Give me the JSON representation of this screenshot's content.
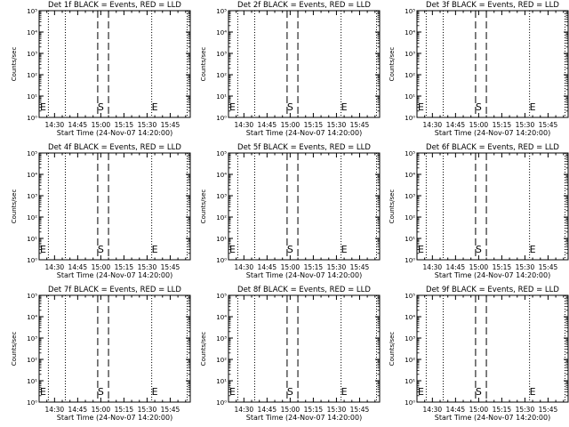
{
  "chart_data": [
    {
      "type": "line",
      "title": "Det 1f BLACK = Events, RED = LLD",
      "xlabel": "Start Time (24-Nov-07 14:20:00)",
      "ylabel": "Counts/sec",
      "x_ticks": [
        "14:30",
        "14:45",
        "15:00",
        "15:15",
        "15:30",
        "15:45"
      ],
      "y_ticks": [
        "10⁰",
        "10¹",
        "10²",
        "10³",
        "10⁴",
        "10⁵"
      ],
      "xlim": [
        "14:20",
        "15:58"
      ],
      "ylim": [
        1,
        100000
      ],
      "yscale": "log",
      "markers": [
        {
          "label": "E",
          "time": "14:20"
        },
        {
          "label": "S",
          "time": "15:00"
        },
        {
          "label": "E",
          "time": "15:35"
        }
      ],
      "dotted_lines": [
        "14:26",
        "14:37",
        "15:33",
        "15:56"
      ],
      "dashed_lines": [
        "14:58",
        "15:05"
      ],
      "series": []
    },
    {
      "type": "line",
      "title": "Det 2f BLACK = Events, RED = LLD",
      "xlabel": "Start Time (24-Nov-07 14:20:00)",
      "ylabel": "Counts/sec",
      "x_ticks": [
        "14:30",
        "14:45",
        "15:00",
        "15:15",
        "15:30",
        "15:45"
      ],
      "y_ticks": [
        "10⁰",
        "10¹",
        "10²",
        "10³",
        "10⁴",
        "10⁵"
      ],
      "xlim": [
        "14:20",
        "15:58"
      ],
      "ylim": [
        1,
        100000
      ],
      "yscale": "log",
      "markers": [
        {
          "label": "E",
          "time": "14:20"
        },
        {
          "label": "S",
          "time": "15:00"
        },
        {
          "label": "E",
          "time": "15:35"
        }
      ],
      "dotted_lines": [
        "14:26",
        "14:37",
        "15:33",
        "15:56"
      ],
      "dashed_lines": [
        "14:58",
        "15:05"
      ],
      "series": []
    },
    {
      "type": "line",
      "title": "Det 3f BLACK = Events, RED = LLD",
      "xlabel": "Start Time (24-Nov-07 14:20:00)",
      "ylabel": "Counts/sec",
      "x_ticks": [
        "14:30",
        "14:45",
        "15:00",
        "15:15",
        "15:30",
        "15:45"
      ],
      "y_ticks": [
        "10⁰",
        "10¹",
        "10²",
        "10³",
        "10⁴",
        "10⁵"
      ],
      "xlim": [
        "14:20",
        "15:58"
      ],
      "ylim": [
        1,
        100000
      ],
      "yscale": "log",
      "markers": [
        {
          "label": "E",
          "time": "14:20"
        },
        {
          "label": "S",
          "time": "15:00"
        },
        {
          "label": "E",
          "time": "15:35"
        }
      ],
      "dotted_lines": [
        "14:26",
        "14:37",
        "15:33",
        "15:56"
      ],
      "dashed_lines": [
        "14:58",
        "15:05"
      ],
      "series": []
    },
    {
      "type": "line",
      "title": "Det 4f BLACK = Events, RED = LLD",
      "xlabel": "Start Time (24-Nov-07 14:20:00)",
      "ylabel": "Counts/sec",
      "x_ticks": [
        "14:30",
        "14:45",
        "15:00",
        "15:15",
        "15:30",
        "15:45"
      ],
      "y_ticks": [
        "10⁰",
        "10¹",
        "10²",
        "10³",
        "10⁴",
        "10⁵"
      ],
      "xlim": [
        "14:20",
        "15:58"
      ],
      "ylim": [
        1,
        100000
      ],
      "yscale": "log",
      "markers": [
        {
          "label": "E",
          "time": "14:20"
        },
        {
          "label": "S",
          "time": "15:00"
        },
        {
          "label": "E",
          "time": "15:35"
        }
      ],
      "dotted_lines": [
        "14:26",
        "14:37",
        "15:33",
        "15:56"
      ],
      "dashed_lines": [
        "14:58",
        "15:05"
      ],
      "series": []
    },
    {
      "type": "line",
      "title": "Det 5f BLACK = Events, RED = LLD",
      "xlabel": "Start Time (24-Nov-07 14:20:00)",
      "ylabel": "Counts/sec",
      "x_ticks": [
        "14:30",
        "14:45",
        "15:00",
        "15:15",
        "15:30",
        "15:45"
      ],
      "y_ticks": [
        "10⁰",
        "10¹",
        "10²",
        "10³",
        "10⁴",
        "10⁵"
      ],
      "xlim": [
        "14:20",
        "15:58"
      ],
      "ylim": [
        1,
        100000
      ],
      "yscale": "log",
      "markers": [
        {
          "label": "E",
          "time": "14:20"
        },
        {
          "label": "S",
          "time": "15:00"
        },
        {
          "label": "E",
          "time": "15:35"
        }
      ],
      "dotted_lines": [
        "14:26",
        "14:37",
        "15:33",
        "15:56"
      ],
      "dashed_lines": [
        "14:58",
        "15:05"
      ],
      "series": []
    },
    {
      "type": "line",
      "title": "Det 6f BLACK = Events, RED = LLD",
      "xlabel": "Start Time (24-Nov-07 14:20:00)",
      "ylabel": "Counts/sec",
      "x_ticks": [
        "14:30",
        "14:45",
        "15:00",
        "15:15",
        "15:30",
        "15:45"
      ],
      "y_ticks": [
        "10⁰",
        "10¹",
        "10²",
        "10³",
        "10⁴",
        "10⁵"
      ],
      "xlim": [
        "14:20",
        "15:58"
      ],
      "ylim": [
        1,
        100000
      ],
      "yscale": "log",
      "markers": [
        {
          "label": "E",
          "time": "14:20"
        },
        {
          "label": "S",
          "time": "15:00"
        },
        {
          "label": "E",
          "time": "15:35"
        }
      ],
      "dotted_lines": [
        "14:26",
        "14:37",
        "15:33",
        "15:56"
      ],
      "dashed_lines": [
        "14:58",
        "15:05"
      ],
      "series": []
    },
    {
      "type": "line",
      "title": "Det 7f BLACK = Events, RED = LLD",
      "xlabel": "Start Time (24-Nov-07 14:20:00)",
      "ylabel": "Counts/sec",
      "x_ticks": [
        "14:30",
        "14:45",
        "15:00",
        "15:15",
        "15:30",
        "15:45"
      ],
      "y_ticks": [
        "10⁰",
        "10¹",
        "10²",
        "10³",
        "10⁴",
        "10⁵"
      ],
      "xlim": [
        "14:20",
        "15:58"
      ],
      "ylim": [
        1,
        100000
      ],
      "yscale": "log",
      "markers": [
        {
          "label": "E",
          "time": "14:20"
        },
        {
          "label": "S",
          "time": "15:00"
        },
        {
          "label": "E",
          "time": "15:35"
        }
      ],
      "dotted_lines": [
        "14:26",
        "14:37",
        "15:33",
        "15:56"
      ],
      "dashed_lines": [
        "14:58",
        "15:05"
      ],
      "series": []
    },
    {
      "type": "line",
      "title": "Det 8f BLACK = Events, RED = LLD",
      "xlabel": "Start Time (24-Nov-07 14:20:00)",
      "ylabel": "Counts/sec",
      "x_ticks": [
        "14:30",
        "14:45",
        "15:00",
        "15:15",
        "15:30",
        "15:45"
      ],
      "y_ticks": [
        "10⁰",
        "10¹",
        "10²",
        "10³",
        "10⁴",
        "10⁵"
      ],
      "xlim": [
        "14:20",
        "15:58"
      ],
      "ylim": [
        1,
        100000
      ],
      "yscale": "log",
      "markers": [
        {
          "label": "E",
          "time": "14:20"
        },
        {
          "label": "S",
          "time": "15:00"
        },
        {
          "label": "E",
          "time": "15:35"
        }
      ],
      "dotted_lines": [
        "14:26",
        "14:37",
        "15:33",
        "15:56"
      ],
      "dashed_lines": [
        "14:58",
        "15:05"
      ],
      "series": []
    },
    {
      "type": "line",
      "title": "Det 9f BLACK = Events, RED = LLD",
      "xlabel": "Start Time (24-Nov-07 14:20:00)",
      "ylabel": "Counts/sec",
      "x_ticks": [
        "14:30",
        "14:45",
        "15:00",
        "15:15",
        "15:30",
        "15:45"
      ],
      "y_ticks": [
        "10⁰",
        "10¹",
        "10²",
        "10³",
        "10⁴",
        "10⁵"
      ],
      "xlim": [
        "14:20",
        "15:58"
      ],
      "ylim": [
        1,
        100000
      ],
      "yscale": "log",
      "markers": [
        {
          "label": "E",
          "time": "14:20"
        },
        {
          "label": "S",
          "time": "15:00"
        },
        {
          "label": "E",
          "time": "15:35"
        }
      ],
      "dotted_lines": [
        "14:26",
        "14:37",
        "15:33",
        "15:56"
      ],
      "dashed_lines": [
        "14:58",
        "15:05"
      ],
      "series": []
    }
  ]
}
